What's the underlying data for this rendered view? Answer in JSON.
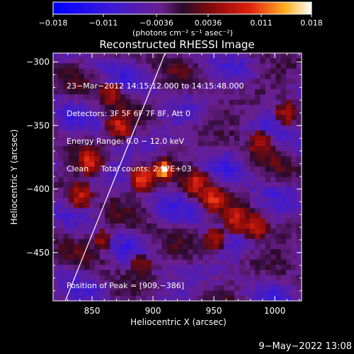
{
  "chart_data": {
    "type": "heatmap",
    "title": "Reconstructed RHESSI Image",
    "xlabel": "Heliocentric X (arcsec)",
    "ylabel": "Heliocentric Y (arcsec)",
    "xlim": [
      818,
      1022
    ],
    "ylim": [
      -488,
      -293
    ],
    "x_ticks": [
      850,
      900,
      950,
      1000
    ],
    "y_ticks": [
      -300,
      -350,
      -400,
      -450
    ],
    "x_tick_labels": [
      "850",
      "900",
      "950",
      "1000"
    ],
    "y_tick_labels": [
      "−300",
      "−350",
      "−400",
      "−450"
    ],
    "colorbar": {
      "range": [
        -0.018,
        0.018
      ],
      "tick_values": [
        -0.018,
        -0.011,
        -0.0036,
        0.0036,
        0.011,
        0.018
      ],
      "tick_labels": [
        "−0.018",
        "−0.011",
        "−0.0036",
        "0.0036",
        "0.011",
        "0.018"
      ],
      "unit_label": "(photons cm⁻² s⁻¹ asec⁻²)",
      "colormap": "blue-purple-red-yellow-white"
    },
    "limb_line": {
      "points": [
        [
          828,
          -488
        ],
        [
          910,
          -293
        ]
      ]
    },
    "peak": {
      "x": 909,
      "y": -386,
      "value": 0.018
    },
    "sources": [
      {
        "x": 909,
        "y": -385,
        "value": 0.018
      },
      {
        "x": 892,
        "y": -392,
        "value": 0.01
      },
      {
        "x": 935,
        "y": -395,
        "value": 0.008
      },
      {
        "x": 950,
        "y": -408,
        "value": 0.009
      },
      {
        "x": 968,
        "y": -423,
        "value": 0.008
      },
      {
        "x": 985,
        "y": -430,
        "value": 0.007
      },
      {
        "x": 950,
        "y": -440,
        "value": 0.005
      },
      {
        "x": 848,
        "y": -378,
        "value": 0.009
      },
      {
        "x": 840,
        "y": -405,
        "value": 0.007
      },
      {
        "x": 873,
        "y": -350,
        "value": 0.008
      },
      {
        "x": 865,
        "y": -325,
        "value": 0.006
      },
      {
        "x": 988,
        "y": -365,
        "value": 0.006
      },
      {
        "x": 1010,
        "y": -340,
        "value": 0.005
      },
      {
        "x": 890,
        "y": -460,
        "value": 0.004
      },
      {
        "x": 858,
        "y": -440,
        "value": 0.004
      }
    ]
  },
  "annotations": {
    "line1": "23−Mar−2012 14:15:12.000 to 14:15:48.000",
    "line2": "Detectors: 3F 5F 6F 7F 8F, Att 0",
    "line3": "Energy Range: 6.0 − 12.0 keV",
    "line4": "Clean     Total counts: 2.97E+03",
    "peak_text": "Position of Peak = [909,−386]"
  },
  "footer": {
    "timestamp": "9−May−2022 13:08"
  }
}
